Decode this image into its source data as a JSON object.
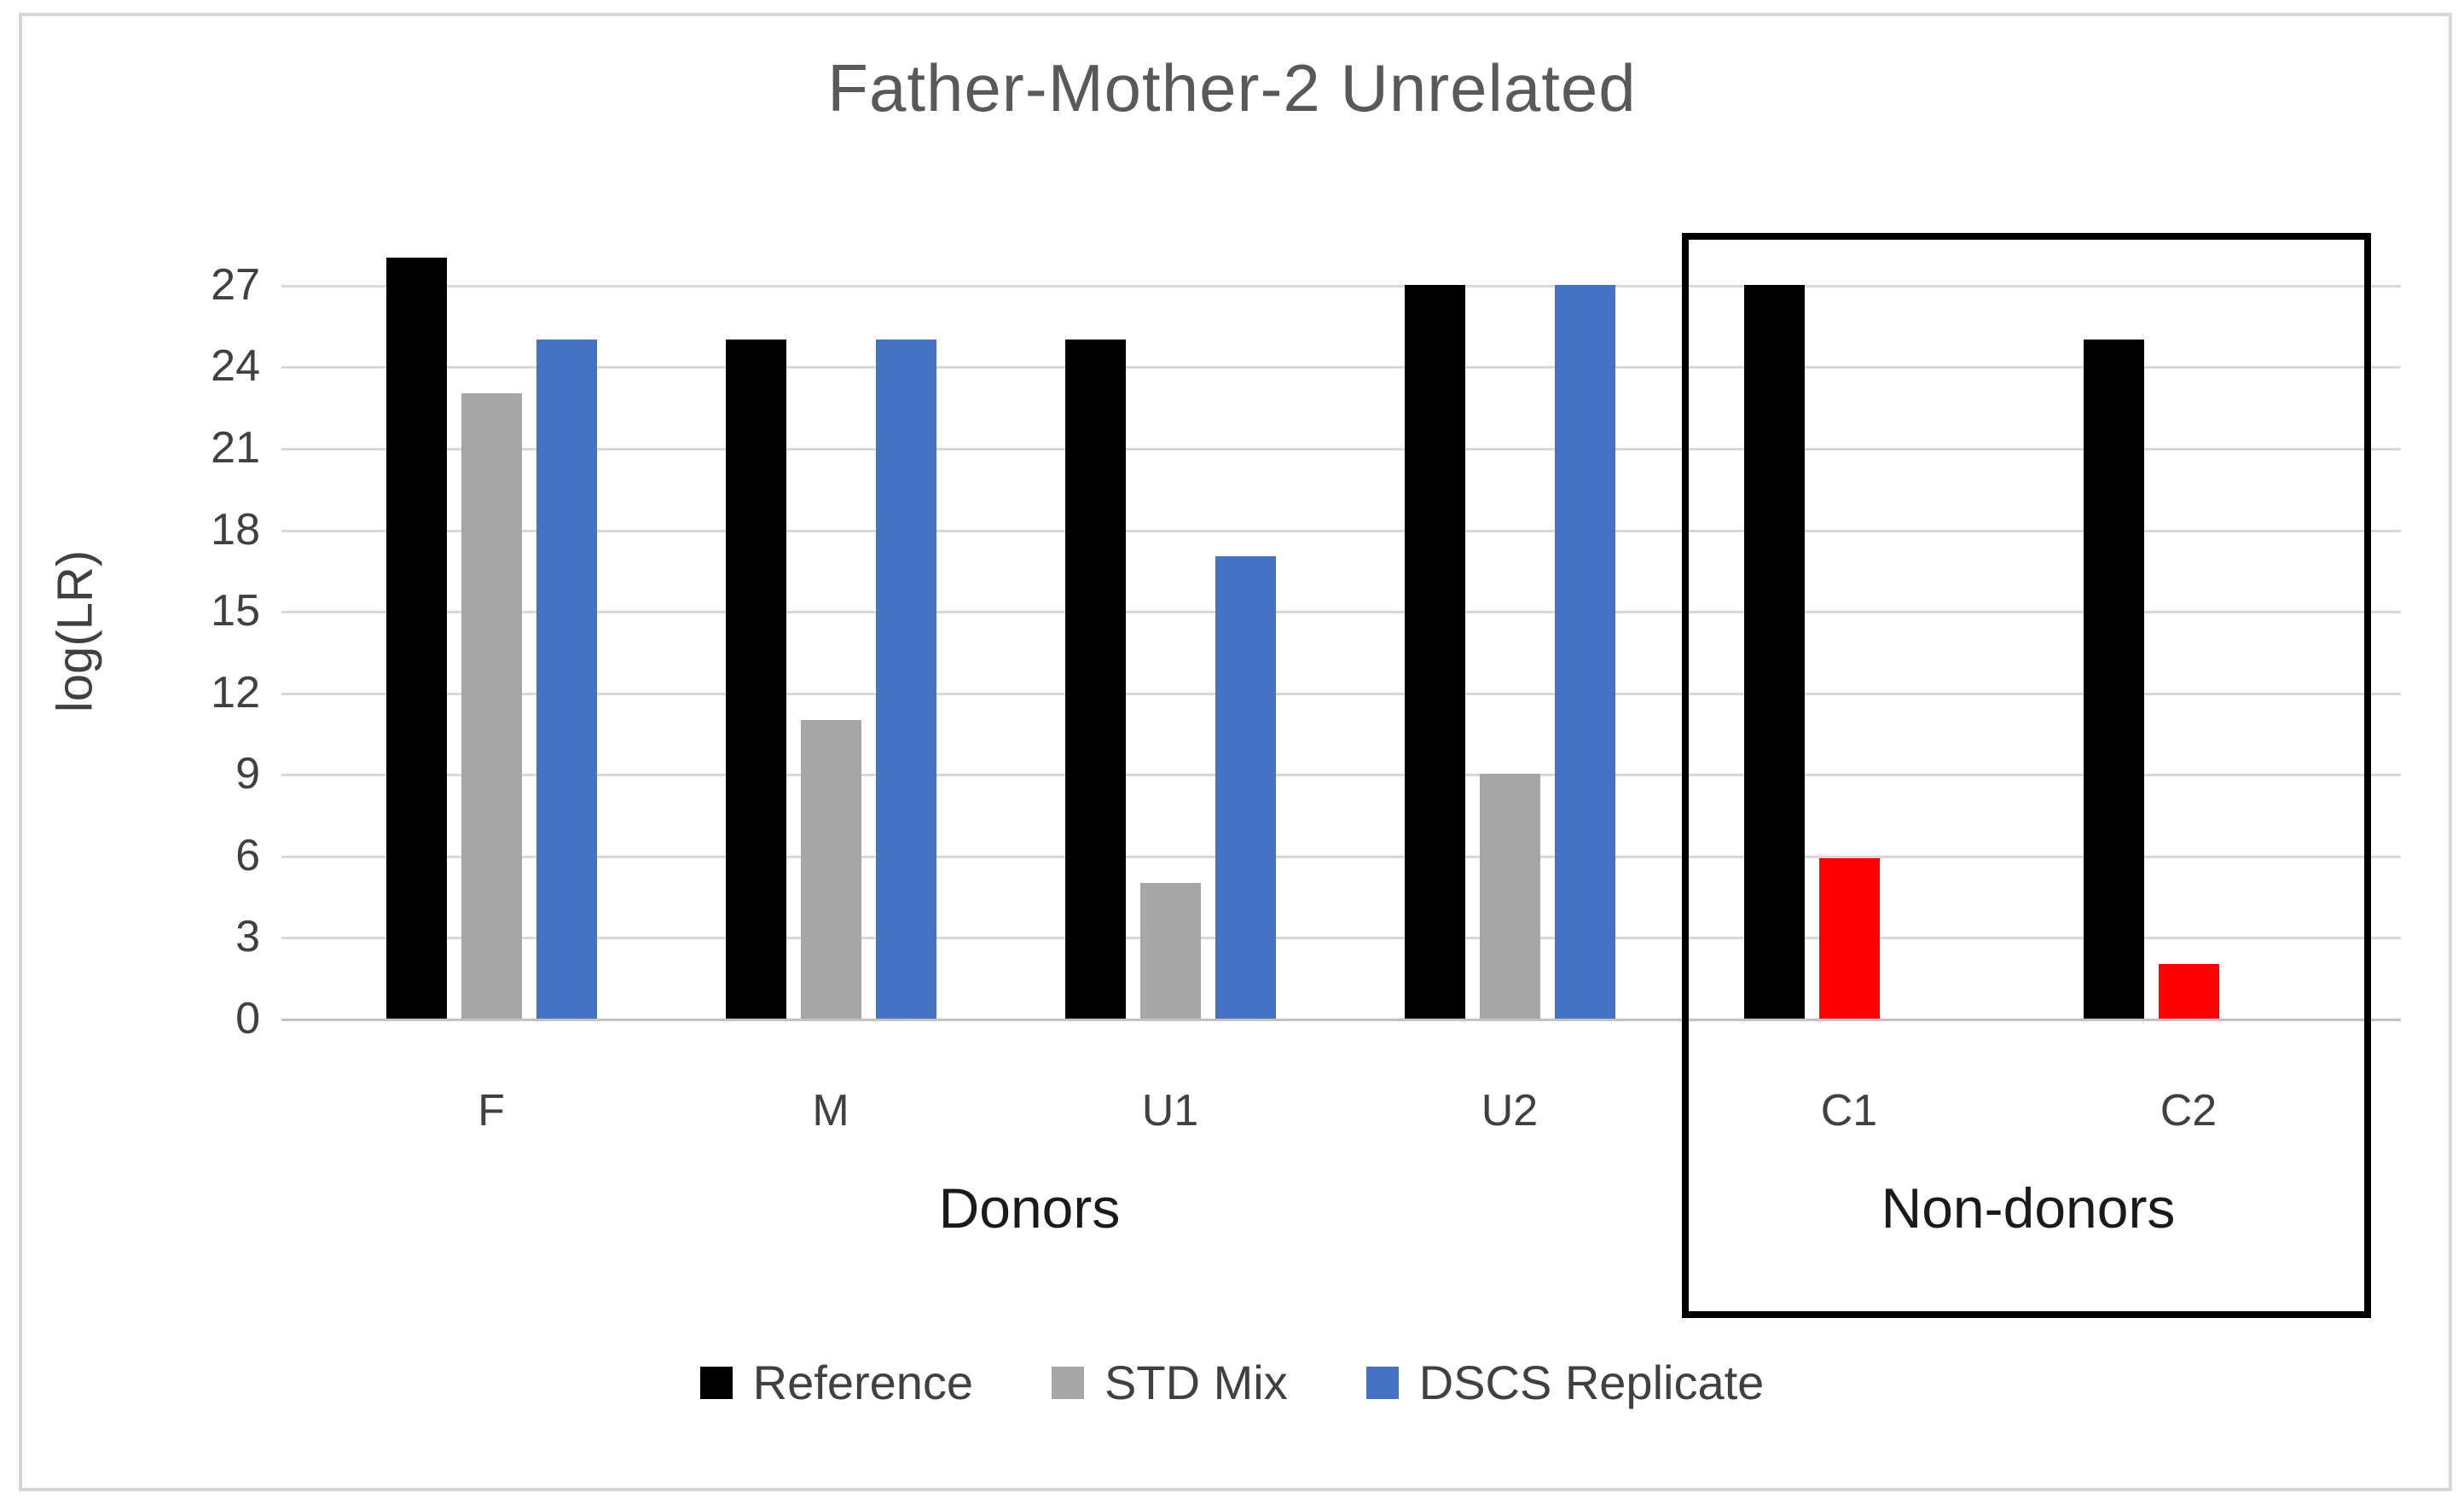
{
  "title": "Father-Mother-2 Unrelated",
  "y_axis_title": "log(LR)",
  "donors_label": "Donors",
  "nondonors_label": "Non-donors",
  "colors": {
    "reference": "#000000",
    "std_mix": "#a6a6a6",
    "dscs_replicate": "#4472c4",
    "nondonor_red": "#ff0000",
    "title_text": "#595959",
    "axis_text": "#404040",
    "gridline": "#d9d9d9",
    "canvas_border": "#d6d6d6",
    "annotation_box_border": "#000000"
  },
  "legend": [
    {
      "label": "Reference",
      "color": "#000000"
    },
    {
      "label": "STD Mix",
      "color": "#a6a6a6"
    },
    {
      "label": "DSCS Replicate",
      "color": "#4472c4"
    }
  ],
  "chart_data": {
    "type": "bar",
    "title": "Father-Mother-2 Unrelated",
    "ylabel": "log(LR)",
    "xlabel": "",
    "categories": [
      "F",
      "M",
      "U1",
      "U2",
      "C1",
      "C2"
    ],
    "category_groups": {
      "Donors": [
        "F",
        "M",
        "U1",
        "U2"
      ],
      "Non-donors": [
        "C1",
        "C2"
      ]
    },
    "series": [
      {
        "name": "Reference",
        "color": "#000000",
        "slot": 0,
        "values": [
          28,
          25,
          25,
          27,
          27,
          25
        ]
      },
      {
        "name": "STD Mix",
        "color": "#a6a6a6",
        "slot": 1,
        "values": [
          23,
          11,
          5,
          9,
          null,
          null
        ]
      },
      {
        "name": "DSCS Replicate",
        "color": "#4472c4",
        "slot": 2,
        "values": [
          25,
          25,
          17,
          27,
          null,
          null
        ]
      },
      {
        "name": "Non-donor",
        "color": "#ff0000",
        "slot": 1,
        "values": [
          null,
          null,
          null,
          null,
          5.9,
          2
        ]
      }
    ],
    "y_ticks": [
      0,
      3,
      6,
      9,
      12,
      15,
      18,
      21,
      24,
      27
    ],
    "ylim": [
      0,
      28.5
    ],
    "grid": true,
    "legend_position": "bottom",
    "annotation_box": {
      "label": "Non-donors",
      "categories": [
        "C1",
        "C2"
      ]
    }
  }
}
